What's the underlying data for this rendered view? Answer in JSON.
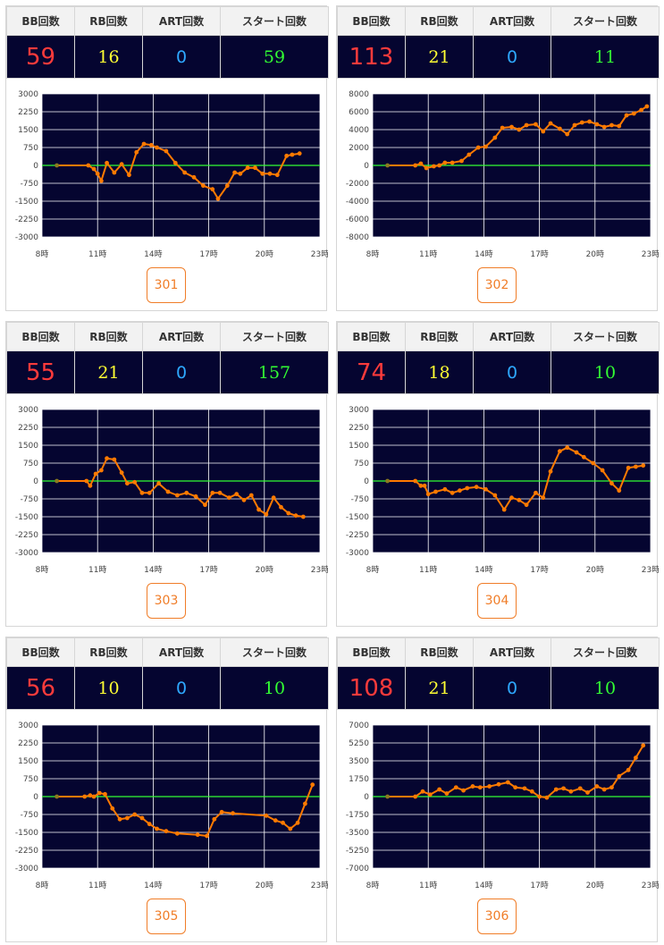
{
  "headers": {
    "bb": "BB回数",
    "rb": "RB回数",
    "art": "ART回数",
    "start": "スタート回数"
  },
  "colors": {
    "plot_bg": "#050530",
    "zero_line": "#33ff33",
    "series": "#ff7a00",
    "bb": "#ff3b3b",
    "rb": "#ffff33",
    "art": "#2ea8ff",
    "start": "#33ff33",
    "button": "#f07d28"
  },
  "machines": [
    {
      "number": "301",
      "bb": "59",
      "rb": "16",
      "art": "0",
      "start": "59"
    },
    {
      "number": "302",
      "bb": "113",
      "rb": "21",
      "art": "0",
      "start": "11"
    },
    {
      "number": "303",
      "bb": "55",
      "rb": "21",
      "art": "0",
      "start": "157"
    },
    {
      "number": "304",
      "bb": "74",
      "rb": "18",
      "art": "0",
      "start": "10"
    },
    {
      "number": "305",
      "bb": "56",
      "rb": "10",
      "art": "0",
      "start": "10"
    },
    {
      "number": "306",
      "bb": "108",
      "rb": "21",
      "art": "0",
      "start": "10"
    }
  ],
  "chart_data": [
    {
      "type": "line",
      "xlim": [
        8,
        23
      ],
      "ylim": [
        -3000,
        3000
      ],
      "xticks": [
        8,
        11,
        14,
        17,
        20,
        23
      ],
      "xtick_labels": [
        "8時",
        "11時",
        "14時",
        "17時",
        "20時",
        "23時"
      ],
      "yticks": [
        3000,
        2250,
        1500,
        750,
        0,
        -750,
        -1500,
        -2250,
        -3000
      ],
      "grid": true,
      "x": [
        8.8,
        10.5,
        10.8,
        11.0,
        11.2,
        11.5,
        11.9,
        12.3,
        12.7,
        13.1,
        13.5,
        13.9,
        14.2,
        14.7,
        15.2,
        15.7,
        16.2,
        16.7,
        17.2,
        17.5,
        18.0,
        18.4,
        18.7,
        19.1,
        19.5,
        19.9,
        20.3,
        20.7,
        21.2,
        21.5,
        21.9
      ],
      "y": [
        0,
        0,
        -150,
        -350,
        -650,
        100,
        -300,
        50,
        -400,
        550,
        900,
        850,
        750,
        600,
        100,
        -300,
        -500,
        -850,
        -1000,
        -1400,
        -850,
        -300,
        -350,
        -100,
        -100,
        -350,
        -350,
        -400,
        400,
        450,
        500
      ]
    },
    {
      "type": "line",
      "xlim": [
        8,
        23
      ],
      "ylim": [
        -8000,
        8000
      ],
      "xticks": [
        8,
        11,
        14,
        17,
        20,
        23
      ],
      "xtick_labels": [
        "8時",
        "11時",
        "14時",
        "17時",
        "20時",
        "23時"
      ],
      "yticks": [
        8000,
        6000,
        4000,
        2000,
        0,
        -2000,
        -4000,
        -6000,
        -8000
      ],
      "grid": true,
      "x": [
        8.8,
        10.3,
        10.6,
        10.9,
        11.3,
        11.6,
        11.9,
        12.3,
        12.8,
        13.2,
        13.7,
        14.1,
        14.6,
        15.0,
        15.5,
        15.9,
        16.3,
        16.8,
        17.2,
        17.6,
        18.1,
        18.5,
        18.9,
        19.3,
        19.7,
        20.1,
        20.5,
        20.9,
        21.3,
        21.7,
        22.1,
        22.5,
        22.8
      ],
      "y": [
        0,
        0,
        200,
        -300,
        -100,
        0,
        300,
        300,
        500,
        1200,
        2000,
        2100,
        3100,
        4200,
        4300,
        4000,
        4500,
        4600,
        3800,
        4700,
        4100,
        3500,
        4500,
        4800,
        4900,
        4600,
        4300,
        4500,
        4400,
        5600,
        5800,
        6200,
        6600
      ]
    },
    {
      "type": "line",
      "xlim": [
        8,
        23
      ],
      "ylim": [
        -3000,
        3000
      ],
      "xticks": [
        8,
        11,
        14,
        17,
        20,
        23
      ],
      "xtick_labels": [
        "8時",
        "11時",
        "14時",
        "17時",
        "20時",
        "23時"
      ],
      "yticks": [
        3000,
        2250,
        1500,
        750,
        0,
        -750,
        -1500,
        -2250,
        -3000
      ],
      "grid": true,
      "x": [
        8.8,
        10.4,
        10.6,
        10.9,
        11.2,
        11.5,
        11.9,
        12.3,
        12.6,
        13.0,
        13.4,
        13.8,
        14.3,
        14.8,
        15.3,
        15.8,
        16.3,
        16.8,
        17.2,
        17.6,
        18.1,
        18.5,
        18.9,
        19.3,
        19.7,
        20.1,
        20.5,
        20.9,
        21.3,
        21.7,
        22.1
      ],
      "y": [
        0,
        0,
        -200,
        300,
        450,
        950,
        900,
        350,
        -100,
        -50,
        -500,
        -500,
        -100,
        -450,
        -600,
        -500,
        -650,
        -1000,
        -500,
        -500,
        -700,
        -550,
        -800,
        -600,
        -1200,
        -1400,
        -700,
        -1100,
        -1350,
        -1450,
        -1500
      ]
    },
    {
      "type": "line",
      "xlim": [
        8,
        23
      ],
      "ylim": [
        -3000,
        3000
      ],
      "xticks": [
        8,
        11,
        14,
        17,
        20,
        23
      ],
      "xtick_labels": [
        "8時",
        "11時",
        "14時",
        "17時",
        "20時",
        "23時"
      ],
      "yticks": [
        3000,
        2250,
        1500,
        750,
        0,
        -750,
        -1500,
        -2250,
        -3000
      ],
      "grid": true,
      "x": [
        8.8,
        10.3,
        10.6,
        10.8,
        11.0,
        11.4,
        11.9,
        12.3,
        12.7,
        13.1,
        13.6,
        14.1,
        14.6,
        15.1,
        15.5,
        15.9,
        16.3,
        16.8,
        17.2,
        17.6,
        18.1,
        18.5,
        19.0,
        19.4,
        19.9,
        20.4,
        20.9,
        21.3,
        21.8,
        22.2,
        22.6
      ],
      "y": [
        0,
        0,
        -200,
        -200,
        -550,
        -450,
        -350,
        -500,
        -400,
        -300,
        -250,
        -350,
        -600,
        -1200,
        -700,
        -800,
        -1000,
        -500,
        -700,
        400,
        1250,
        1400,
        1200,
        1000,
        750,
        450,
        -100,
        -400,
        550,
        600,
        650
      ]
    },
    {
      "type": "line",
      "xlim": [
        8,
        23
      ],
      "ylim": [
        -3000,
        3000
      ],
      "xticks": [
        8,
        11,
        14,
        17,
        20,
        23
      ],
      "xtick_labels": [
        "8時",
        "11時",
        "14時",
        "17時",
        "20時",
        "23時"
      ],
      "yticks": [
        3000,
        2250,
        1500,
        750,
        0,
        -750,
        -1500,
        -2250,
        -3000
      ],
      "grid": true,
      "x": [
        8.8,
        10.3,
        10.6,
        10.8,
        11.1,
        11.4,
        11.8,
        12.2,
        12.6,
        13.0,
        13.4,
        13.8,
        14.2,
        14.7,
        15.3,
        16.4,
        16.9,
        17.3,
        17.7,
        18.3,
        20.1,
        20.6,
        21.0,
        21.4,
        21.8,
        22.2,
        22.6
      ],
      "y": [
        0,
        0,
        50,
        0,
        150,
        100,
        -500,
        -950,
        -900,
        -750,
        -900,
        -1150,
        -1350,
        -1450,
        -1550,
        -1600,
        -1650,
        -950,
        -650,
        -700,
        -800,
        -1000,
        -1100,
        -1350,
        -1100,
        -300,
        500
      ]
    },
    {
      "type": "line",
      "xlim": [
        8,
        23
      ],
      "ylim": [
        -7000,
        7000
      ],
      "xticks": [
        8,
        11,
        14,
        17,
        20,
        23
      ],
      "xtick_labels": [
        "8時",
        "11時",
        "14時",
        "17時",
        "20時",
        "23時"
      ],
      "yticks": [
        7000,
        5250,
        3500,
        1750,
        0,
        -1750,
        -3500,
        -5250,
        -7000
      ],
      "grid": true,
      "x": [
        8.8,
        10.3,
        10.7,
        11.1,
        11.6,
        12.0,
        12.5,
        12.9,
        13.4,
        13.8,
        14.3,
        14.8,
        15.3,
        15.7,
        16.2,
        16.6,
        17.0,
        17.4,
        17.9,
        18.3,
        18.7,
        19.2,
        19.6,
        20.1,
        20.5,
        20.9,
        21.3,
        21.8,
        22.2,
        22.6
      ],
      "y": [
        0,
        0,
        500,
        200,
        700,
        300,
        900,
        600,
        1000,
        900,
        1000,
        1200,
        1400,
        900,
        800,
        500,
        0,
        -100,
        700,
        800,
        500,
        800,
        400,
        1000,
        700,
        900,
        2000,
        2600,
        3800,
        5000
      ]
    }
  ]
}
